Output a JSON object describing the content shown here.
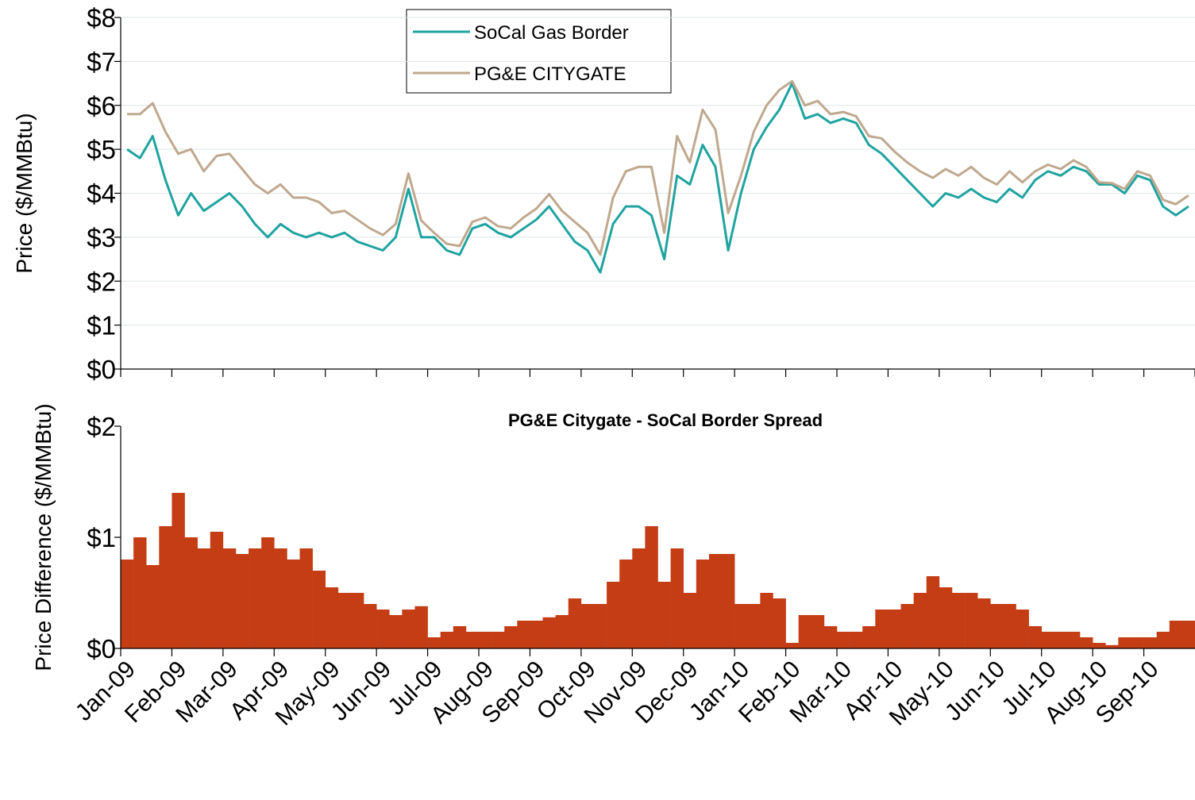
{
  "chart_data": [
    {
      "type": "line",
      "ylabel": "Price ($/MMBtu)",
      "ylim": [
        0,
        8
      ],
      "yticks": [
        {
          "value": 0,
          "label": "$0"
        },
        {
          "value": 1,
          "label": "$1"
        },
        {
          "value": 2,
          "label": "$2"
        },
        {
          "value": 3,
          "label": "$3"
        },
        {
          "value": 4,
          "label": "$4"
        },
        {
          "value": 5,
          "label": "$5"
        },
        {
          "value": 6,
          "label": "$6"
        },
        {
          "value": 7,
          "label": "$7"
        },
        {
          "value": 8,
          "label": "$8"
        }
      ],
      "grid": true,
      "legend": "top-center",
      "series": [
        {
          "name": "SoCal Gas Border",
          "color": "#1fa3a0",
          "values": [
            5.0,
            4.8,
            5.3,
            4.3,
            3.5,
            4.0,
            3.6,
            3.8,
            4.0,
            3.7,
            3.3,
            3.0,
            3.3,
            3.1,
            3.0,
            3.1,
            3.0,
            3.1,
            2.9,
            2.8,
            2.7,
            3.0,
            4.1,
            3.0,
            3.0,
            2.7,
            2.6,
            3.2,
            3.3,
            3.1,
            3.0,
            3.2,
            3.4,
            3.7,
            3.3,
            2.9,
            2.7,
            2.2,
            3.3,
            3.7,
            3.7,
            3.5,
            2.5,
            4.4,
            4.2,
            5.1,
            4.6,
            2.7,
            4.0,
            5.0,
            5.5,
            5.9,
            6.5,
            5.7,
            5.8,
            5.6,
            5.7,
            5.6,
            5.1,
            4.9,
            4.6,
            4.3,
            4.0,
            3.7,
            4.0,
            3.9,
            4.1,
            3.9,
            3.8,
            4.1,
            3.9,
            4.3,
            4.5,
            4.4,
            4.6,
            4.5,
            4.2,
            4.2,
            4.0,
            4.4,
            4.3,
            3.7,
            3.5,
            3.7
          ]
        },
        {
          "name": "PG&E CITYGATE",
          "color": "#bfa88e",
          "values": [
            5.8,
            5.8,
            6.05,
            5.4,
            4.9,
            5.0,
            4.5,
            4.85,
            4.9,
            4.55,
            4.2,
            4.0,
            4.2,
            3.9,
            3.9,
            3.8,
            3.55,
            3.6,
            3.4,
            3.2,
            3.05,
            3.3,
            4.45,
            3.38,
            3.1,
            2.85,
            2.8,
            3.35,
            3.45,
            3.25,
            3.2,
            3.45,
            3.65,
            3.98,
            3.6,
            3.35,
            3.1,
            2.6,
            3.9,
            4.5,
            4.6,
            4.6,
            3.1,
            5.3,
            4.7,
            5.9,
            5.45,
            3.55,
            4.4,
            5.4,
            6.0,
            6.35,
            6.55,
            6.0,
            6.1,
            5.8,
            5.85,
            5.75,
            5.3,
            5.25,
            4.95,
            4.7,
            4.5,
            4.35,
            4.55,
            4.4,
            4.6,
            4.35,
            4.2,
            4.5,
            4.25,
            4.5,
            4.65,
            4.55,
            4.75,
            4.6,
            4.25,
            4.23,
            4.1,
            4.5,
            4.4,
            3.85,
            3.75,
            3.95
          ]
        }
      ]
    },
    {
      "type": "bar",
      "title": "PG&E Citygate - SoCal Border Spread",
      "ylabel": "Price Difference ($/MMBtu)",
      "color": "#c43d15",
      "ylim": [
        0,
        2
      ],
      "yticks": [
        {
          "value": 0,
          "label": "$0"
        },
        {
          "value": 1,
          "label": "$1"
        },
        {
          "value": 2,
          "label": "$2"
        }
      ],
      "categories": [
        "Jan-09",
        null,
        null,
        null,
        "Feb-09",
        null,
        null,
        null,
        "Mar-09",
        null,
        null,
        null,
        "Apr-09",
        null,
        null,
        null,
        "May-09",
        null,
        null,
        null,
        "Jun-09",
        null,
        null,
        null,
        "Jul-09",
        null,
        null,
        null,
        "Aug-09",
        null,
        null,
        null,
        "Sep-09",
        null,
        null,
        null,
        "Oct-09",
        null,
        null,
        null,
        "Nov-09",
        null,
        null,
        null,
        "Dec-09",
        null,
        null,
        null,
        "Jan-10",
        null,
        null,
        null,
        "Feb-10",
        null,
        null,
        null,
        "Mar-10",
        null,
        null,
        null,
        "Apr-10",
        null,
        null,
        null,
        "May-10",
        null,
        null,
        null,
        "Jun-10",
        null,
        null,
        null,
        "Jul-10",
        null,
        null,
        null,
        "Aug-10",
        null,
        null,
        null,
        "Sep-10",
        null,
        null,
        null
      ],
      "values": [
        0.8,
        1.0,
        0.75,
        1.1,
        1.4,
        1.0,
        0.9,
        1.05,
        0.9,
        0.85,
        0.9,
        1.0,
        0.9,
        0.8,
        0.9,
        0.7,
        0.55,
        0.5,
        0.5,
        0.4,
        0.35,
        0.3,
        0.35,
        0.38,
        0.1,
        0.15,
        0.2,
        0.15,
        0.15,
        0.15,
        0.2,
        0.25,
        0.25,
        0.28,
        0.3,
        0.45,
        0.4,
        0.4,
        0.6,
        0.8,
        0.9,
        1.1,
        0.6,
        0.9,
        0.5,
        0.8,
        0.85,
        0.85,
        0.4,
        0.4,
        0.5,
        0.45,
        0.05,
        0.3,
        0.3,
        0.2,
        0.15,
        0.15,
        0.2,
        0.35,
        0.35,
        0.4,
        0.5,
        0.65,
        0.55,
        0.5,
        0.5,
        0.45,
        0.4,
        0.4,
        0.35,
        0.2,
        0.15,
        0.15,
        0.15,
        0.1,
        0.05,
        0.03,
        0.1,
        0.1,
        0.1,
        0.15,
        0.25,
        0.25
      ]
    }
  ]
}
